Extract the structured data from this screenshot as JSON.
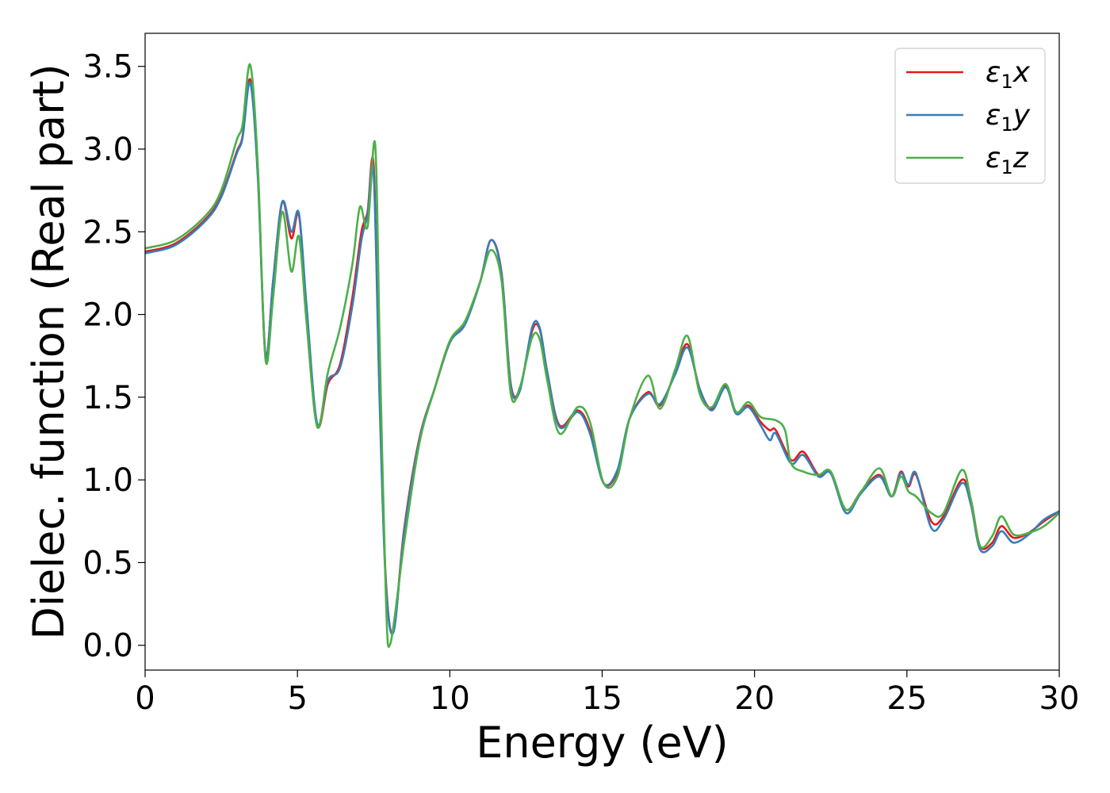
{
  "chart_data": {
    "type": "line",
    "xlabel": "Energy (eV)",
    "ylabel": "Dielec. function (Real part)",
    "xlim": [
      0,
      30
    ],
    "ylim": [
      -0.15,
      3.7
    ],
    "xticks": [
      0,
      5,
      10,
      15,
      20,
      25,
      30
    ],
    "xtick_labels": [
      "0",
      "5",
      "10",
      "15",
      "20",
      "25",
      "30"
    ],
    "yticks": [
      0.0,
      0.5,
      1.0,
      1.5,
      2.0,
      2.5,
      3.0,
      3.5
    ],
    "ytick_labels": [
      "0.0",
      "0.5",
      "1.0",
      "1.5",
      "2.0",
      "2.5",
      "3.0",
      "3.5"
    ],
    "grid": false,
    "legend_position": "top-right",
    "series": [
      {
        "name": "ε1x",
        "symbol": "ε",
        "subscript": "1",
        "suffix": "x",
        "color": "#e41a1c",
        "x": [
          0,
          1,
          2,
          2.5,
          3,
          3.2,
          3.45,
          3.7,
          3.95,
          4.2,
          4.5,
          4.8,
          5.05,
          5.3,
          5.65,
          6,
          6.4,
          6.8,
          7.1,
          7.3,
          7.5,
          7.7,
          7.9,
          8.15,
          8.5,
          9,
          9.5,
          10,
          10.5,
          11,
          11.35,
          11.7,
          12,
          12.3,
          12.7,
          12.95,
          13.2,
          13.6,
          14.2,
          14.6,
          15.05,
          15.5,
          15.9,
          16.5,
          16.9,
          17.4,
          17.8,
          18.2,
          18.6,
          19.05,
          19.4,
          19.8,
          20.2,
          20.5,
          20.7,
          21.2,
          21.6,
          22.1,
          22.5,
          23,
          23.5,
          24.1,
          24.5,
          24.8,
          25.05,
          25.3,
          25.8,
          26.2,
          26.8,
          27.1,
          27.4,
          27.8,
          28.1,
          28.5,
          29,
          29.5,
          30
        ],
        "y": [
          2.38,
          2.43,
          2.58,
          2.72,
          2.98,
          3.08,
          3.42,
          2.85,
          1.76,
          2.2,
          2.68,
          2.46,
          2.6,
          2.02,
          1.33,
          1.58,
          1.7,
          2.1,
          2.5,
          2.62,
          2.9,
          1.5,
          0.4,
          0.08,
          0.7,
          1.25,
          1.55,
          1.83,
          1.95,
          2.2,
          2.45,
          2.25,
          1.58,
          1.55,
          1.9,
          1.91,
          1.65,
          1.33,
          1.42,
          1.3,
          0.98,
          1.05,
          1.37,
          1.53,
          1.45,
          1.65,
          1.82,
          1.55,
          1.43,
          1.57,
          1.4,
          1.45,
          1.35,
          1.3,
          1.3,
          1.12,
          1.17,
          1.03,
          1.05,
          0.82,
          0.93,
          1.03,
          0.9,
          1.05,
          0.96,
          1.03,
          0.75,
          0.78,
          1.0,
          0.88,
          0.6,
          0.62,
          0.72,
          0.65,
          0.68,
          0.75,
          0.81
        ]
      },
      {
        "name": "ε1y",
        "symbol": "ε",
        "subscript": "1",
        "suffix": "y",
        "color": "#377eb8",
        "x": [
          0,
          1,
          2,
          2.5,
          3,
          3.2,
          3.45,
          3.7,
          3.95,
          4.2,
          4.5,
          4.8,
          5.05,
          5.3,
          5.65,
          6,
          6.4,
          6.8,
          7.1,
          7.3,
          7.5,
          7.7,
          7.9,
          8.15,
          8.5,
          9,
          9.5,
          10,
          10.5,
          11,
          11.35,
          11.7,
          12,
          12.3,
          12.7,
          12.95,
          13.2,
          13.6,
          14.2,
          14.6,
          15.05,
          15.5,
          15.9,
          16.5,
          16.9,
          17.4,
          17.8,
          18.2,
          18.6,
          19.05,
          19.4,
          19.8,
          20.2,
          20.5,
          20.7,
          21.2,
          21.6,
          22.1,
          22.5,
          23,
          23.5,
          24.1,
          24.5,
          24.8,
          25.05,
          25.3,
          25.8,
          26.2,
          26.8,
          27.1,
          27.4,
          27.8,
          28.1,
          28.5,
          29,
          29.5,
          30
        ],
        "y": [
          2.37,
          2.42,
          2.57,
          2.71,
          2.97,
          3.07,
          3.4,
          2.83,
          1.75,
          2.2,
          2.68,
          2.5,
          2.61,
          2.05,
          1.34,
          1.6,
          1.68,
          2.05,
          2.45,
          2.6,
          2.85,
          1.45,
          0.38,
          0.08,
          0.68,
          1.24,
          1.55,
          1.83,
          1.94,
          2.2,
          2.45,
          2.24,
          1.57,
          1.54,
          1.92,
          1.92,
          1.65,
          1.32,
          1.41,
          1.28,
          0.98,
          1.06,
          1.37,
          1.52,
          1.46,
          1.64,
          1.8,
          1.55,
          1.42,
          1.56,
          1.4,
          1.44,
          1.33,
          1.24,
          1.28,
          1.1,
          1.15,
          1.02,
          1.04,
          0.8,
          0.92,
          1.02,
          0.9,
          1.04,
          0.97,
          1.04,
          0.71,
          0.76,
          0.98,
          0.85,
          0.58,
          0.6,
          0.69,
          0.62,
          0.67,
          0.76,
          0.81
        ]
      },
      {
        "name": "ε1z",
        "symbol": "ε",
        "subscript": "1",
        "suffix": "z",
        "color": "#4daf4a",
        "x": [
          0,
          1,
          2,
          2.5,
          3,
          3.2,
          3.45,
          3.7,
          3.95,
          4.2,
          4.5,
          4.8,
          5.05,
          5.3,
          5.65,
          6,
          6.4,
          6.8,
          7.05,
          7.3,
          7.55,
          7.7,
          7.9,
          8.05,
          8.5,
          9,
          9.5,
          10,
          10.5,
          11,
          11.35,
          11.7,
          12,
          12.3,
          12.7,
          12.95,
          13.2,
          13.6,
          14.2,
          14.6,
          15.05,
          15.5,
          15.9,
          16.5,
          16.9,
          17.4,
          17.8,
          18.2,
          18.6,
          19.05,
          19.4,
          19.8,
          20.2,
          20.7,
          21,
          21.2,
          21.6,
          22.1,
          22.5,
          23,
          23.5,
          24.1,
          24.5,
          24.8,
          25.05,
          25.3,
          25.8,
          26.2,
          26.8,
          27.1,
          27.4,
          27.8,
          28.1,
          28.5,
          29,
          29.5,
          30
        ],
        "y": [
          2.4,
          2.45,
          2.6,
          2.75,
          3.05,
          3.15,
          3.51,
          2.9,
          1.73,
          2.1,
          2.62,
          2.26,
          2.47,
          1.95,
          1.32,
          1.65,
          1.92,
          2.3,
          2.65,
          2.53,
          3.03,
          1.8,
          0.3,
          0.01,
          0.62,
          1.22,
          1.55,
          1.84,
          1.96,
          2.2,
          2.39,
          2.2,
          1.52,
          1.56,
          1.86,
          1.85,
          1.6,
          1.28,
          1.44,
          1.35,
          0.98,
          1.02,
          1.37,
          1.63,
          1.43,
          1.67,
          1.87,
          1.52,
          1.44,
          1.58,
          1.41,
          1.47,
          1.38,
          1.36,
          1.3,
          1.1,
          1.05,
          1.03,
          1.05,
          0.82,
          0.93,
          1.07,
          0.9,
          1.02,
          0.93,
          0.9,
          0.8,
          0.8,
          1.06,
          0.88,
          0.6,
          0.66,
          0.78,
          0.67,
          0.68,
          0.72,
          0.8
        ]
      }
    ]
  }
}
